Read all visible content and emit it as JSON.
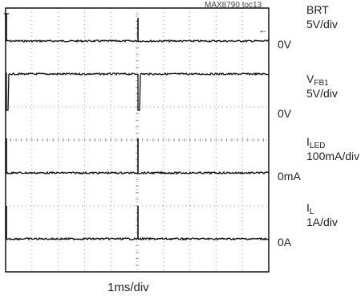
{
  "figure_id": "MAX8790 toc13",
  "chart_data": {
    "type": "line",
    "title": "",
    "xlabel": "1ms/div",
    "ylabel": "",
    "grid": true,
    "x_divisions": 10,
    "y_divisions": 8,
    "time_per_div": "1ms/div",
    "channels": [
      {
        "key": "brt",
        "name": "BRT",
        "name_main": "BRT",
        "name_sub": "",
        "scale": "5V/div",
        "reference": "0V",
        "baseline_div": 7.0,
        "shape": "short high pulses",
        "pulse_times_div": [
          0.0,
          5.0
        ],
        "pulse_height_div": 0.7
      },
      {
        "key": "vfb1",
        "name": "VFB1",
        "name_main": "V",
        "name_sub": "FB1",
        "scale": "5V/div",
        "reference": "0V",
        "baseline_div": 4.9,
        "level_div": 6.0,
        "shape": "stays high, short dips to baseline",
        "pulse_times_div": [
          0.0,
          5.0
        ]
      },
      {
        "key": "iled",
        "name": "ILED",
        "name_main": "I",
        "name_sub": "LED",
        "scale": "100mA/div",
        "reference": "0mA",
        "baseline_div": 3.0,
        "shape": "short current spikes",
        "pulse_times_div": [
          0.0,
          5.0
        ],
        "pulse_height_div": 1.05
      },
      {
        "key": "il",
        "name": "IL",
        "name_main": "I",
        "name_sub": "L",
        "scale": "1A/div",
        "reference": "0A",
        "baseline_div": 1.0,
        "shape": "short current spikes",
        "pulse_times_div": [
          0.0,
          5.0
        ],
        "pulse_height_div": 1.0
      }
    ]
  },
  "colors": {
    "trace": "#111111",
    "grid": "#9a9a9a",
    "frame": "#111111",
    "text": "#222222"
  },
  "markers": {
    "trigger": "T",
    "trigger_level": "←"
  }
}
